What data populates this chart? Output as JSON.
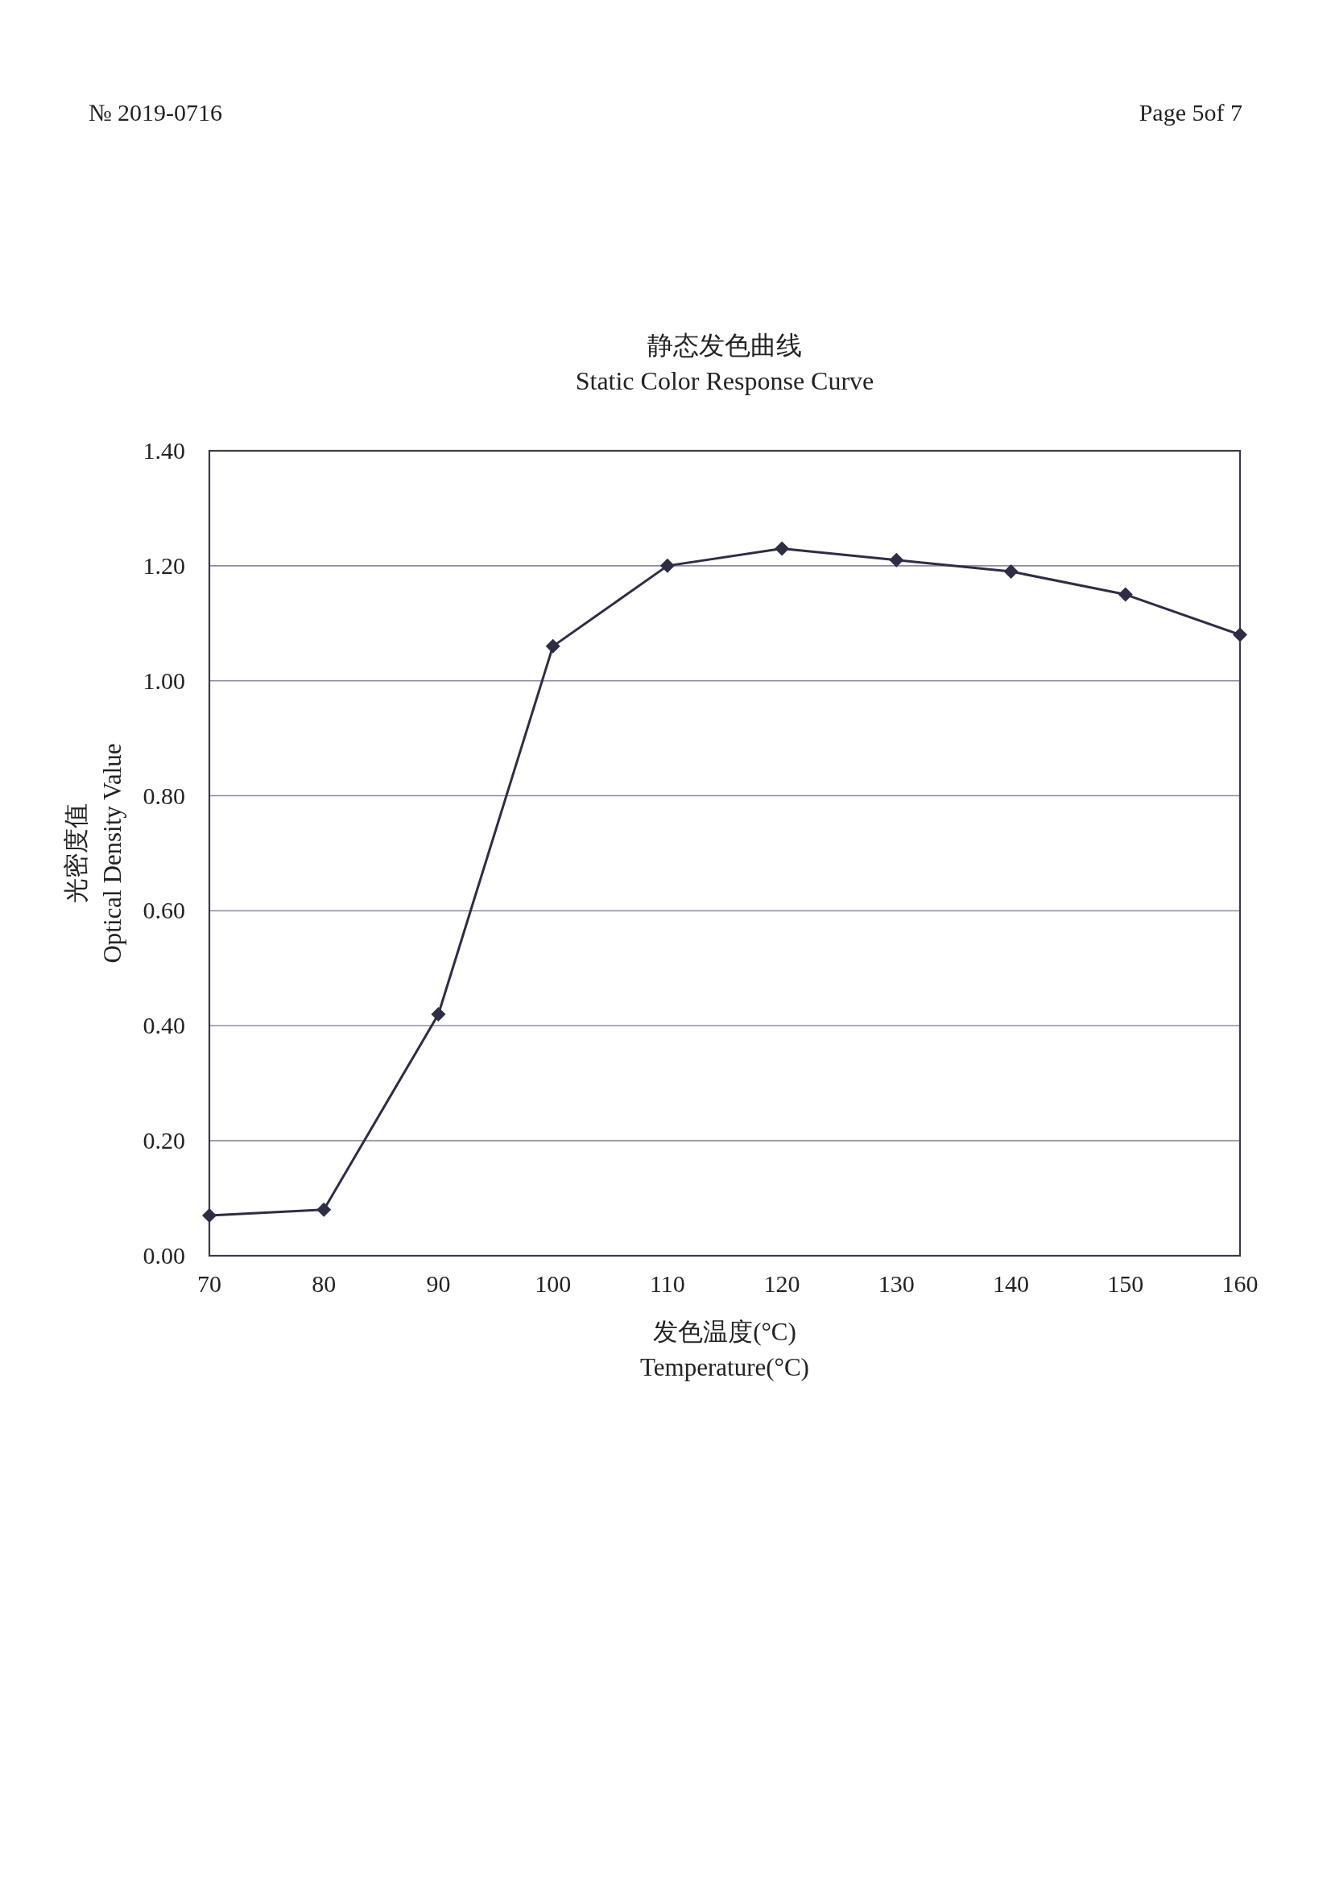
{
  "chart_data": {
    "type": "line",
    "title": "静态发色曲线",
    "subtitle": "Static Color Response Curve",
    "xlabel": "发色温度(°C)\nTemperature(°C)",
    "ylabel": "光密度值\nOptical Density Value",
    "x": [
      70,
      80,
      90,
      100,
      110,
      120,
      130,
      140,
      150,
      160
    ],
    "values": [
      0.07,
      0.08,
      0.42,
      1.06,
      1.2,
      1.23,
      1.21,
      1.19,
      1.15,
      1.08
    ],
    "color": "#2d2d45",
    "xlim": [
      70,
      160
    ],
    "xticks": [
      70,
      80,
      90,
      100,
      110,
      120,
      130,
      140,
      150,
      160
    ],
    "ylim": [
      0,
      1.4
    ],
    "yticks": [
      {
        "value": 0,
        "label": "0.00"
      },
      {
        "value": 0.2,
        "label": "0.20"
      },
      {
        "value": 0.4,
        "label": "0.40"
      },
      {
        "value": 0.6,
        "label": "0.60"
      },
      {
        "value": 0.8,
        "label": "0.80"
      },
      {
        "value": 1.0,
        "label": "1.00"
      },
      {
        "value": 1.2,
        "label": "1.20"
      },
      {
        "value": 1.4,
        "label": "1.40"
      }
    ],
    "grid": "y",
    "marker": "diamond",
    "line_style": "solid",
    "annotations": [
      "№ 2019-0716",
      "Page 5of 7"
    ]
  }
}
